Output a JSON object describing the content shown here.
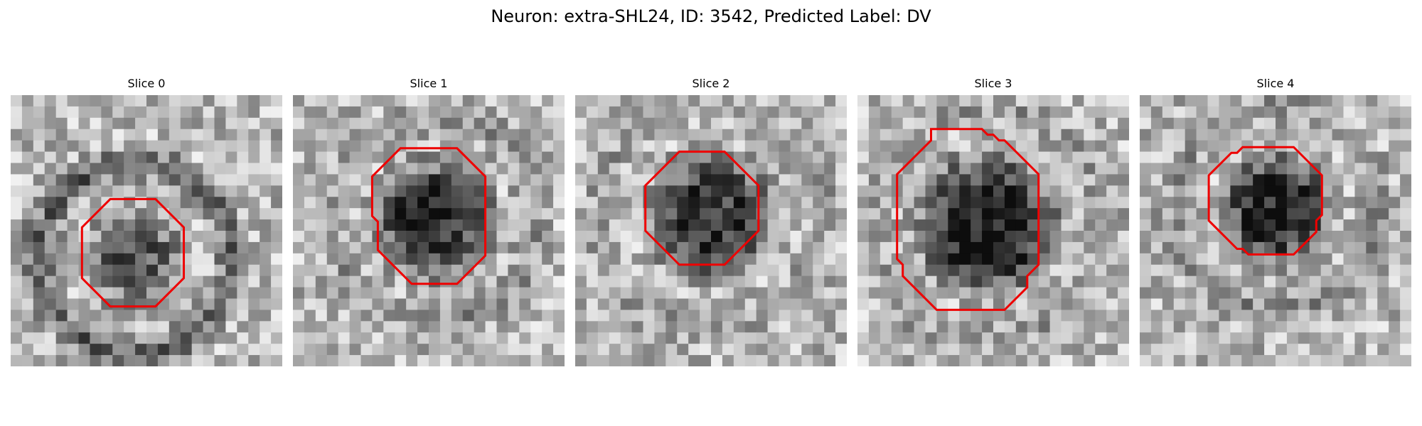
{
  "title": "Neuron: extra-SHL24, ID: 3542, Predicted Label: DV",
  "panels": [
    {
      "label": "Slice 0",
      "contour": [
        [
          9,
          2.5
        ],
        [
          13,
          2.5
        ],
        [
          15.5,
          5
        ],
        [
          15.5,
          9.5
        ],
        [
          13,
          12
        ],
        [
          9,
          12
        ],
        [
          6.5,
          9.5
        ],
        [
          6.5,
          5
        ]
      ],
      "blob": [
        10.5,
        7.5,
        5.5,
        0.35
      ],
      "ring": [
        10.5,
        7.5,
        8.5,
        0.35
      ]
    },
    {
      "label": "Slice 1",
      "contour": [
        [
          11,
          0.5
        ],
        [
          15,
          0.5
        ],
        [
          17.5,
          3
        ],
        [
          17.5,
          10
        ],
        [
          15,
          12.5
        ],
        [
          11,
          12.5
        ],
        [
          8,
          9.5
        ],
        [
          8,
          7
        ],
        [
          7.5,
          6.5
        ],
        [
          7.5,
          3
        ],
        [
          10,
          0.5
        ]
      ],
      "blob": [
        12.5,
        6,
        6.5,
        0.55
      ],
      "ring": [
        12.5,
        6,
        9,
        0.15
      ]
    },
    {
      "label": "Slice 2",
      "contour": [
        [
          8.5,
          -1.5
        ],
        [
          12.5,
          -1.5
        ],
        [
          15.5,
          1.5
        ],
        [
          15.5,
          5.5
        ],
        [
          12.5,
          8.5
        ],
        [
          8.5,
          8.5
        ],
        [
          5.5,
          5.5
        ],
        [
          5.5,
          1.5
        ],
        [
          8.5,
          -1.5
        ]
      ],
      "blob": [
        10.5,
        3.5,
        7,
        0.5
      ],
      "ring": [
        10.5,
        3.5,
        10,
        0.1
      ]
    },
    {
      "label": "Slice 3",
      "contour": [
        [
          7.5,
          -3
        ],
        [
          12,
          -3
        ],
        [
          12.5,
          -2.5
        ],
        [
          13,
          -2.5
        ],
        [
          13.5,
          -2
        ],
        [
          14,
          -2
        ],
        [
          17,
          1
        ],
        [
          17,
          9
        ],
        [
          16,
          10
        ],
        [
          16,
          11
        ],
        [
          14,
          13
        ],
        [
          8,
          13
        ],
        [
          5,
          10
        ],
        [
          5,
          9
        ],
        [
          4.5,
          8.5
        ],
        [
          4.5,
          1
        ],
        [
          7.5,
          -2
        ]
      ],
      "blob": [
        11,
        5,
        7.5,
        0.65
      ],
      "ring": [
        11,
        5,
        10.5,
        0.1
      ]
    },
    {
      "label": "Slice 4",
      "contour": [
        [
          8.5,
          -3
        ],
        [
          13,
          -3
        ],
        [
          15.5,
          -0.5
        ],
        [
          15.5,
          3
        ],
        [
          15,
          3.5
        ],
        [
          15,
          4.5
        ],
        [
          13,
          6.5
        ],
        [
          9,
          6.5
        ],
        [
          8.5,
          6
        ],
        [
          8,
          6
        ],
        [
          5.5,
          3.5
        ],
        [
          5.5,
          -0.5
        ],
        [
          7.5,
          -2.5
        ],
        [
          8,
          -2.5
        ]
      ],
      "blob": [
        10.5,
        1.5,
        6,
        0.6
      ],
      "ring": [
        10.5,
        1.5,
        9,
        0.15
      ]
    }
  ]
}
